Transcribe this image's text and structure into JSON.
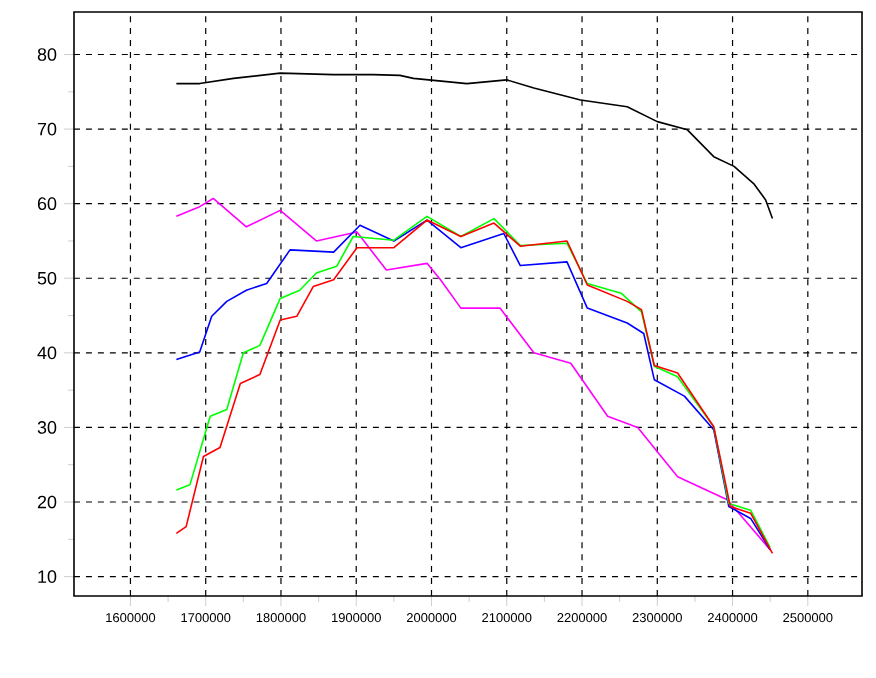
{
  "chart_data": {
    "type": "line",
    "xlim": [
      1525000,
      2572000
    ],
    "ylim": [
      7.4,
      85.7
    ],
    "xticks": [
      1600000,
      1700000,
      1800000,
      1900000,
      2000000,
      2100000,
      2200000,
      2300000,
      2400000,
      2500000
    ],
    "yticks": [
      10,
      20,
      30,
      40,
      50,
      60,
      70,
      80
    ],
    "grid": true,
    "marker": "none",
    "line_style": "solid",
    "series": [
      {
        "color": "#000000",
        "x": [
          1661000,
          1692000,
          1737000,
          1799000,
          1870000,
          1923000,
          1958000,
          1976000,
          2047000,
          2100000,
          2136000,
          2198000,
          2260000,
          2300000,
          2340000,
          2375000,
          2402000,
          2428000,
          2444000,
          2453000
        ],
        "values": [
          76.1,
          76.1,
          76.8,
          77.5,
          77.3,
          77.3,
          77.2,
          76.8,
          76.1,
          76.6,
          75.5,
          73.9,
          73.0,
          71.0,
          69.9,
          66.3,
          65.0,
          62.7,
          60.5,
          58.0
        ]
      },
      {
        "color": "#ff00ff",
        "x": [
          1661000,
          1692000,
          1710000,
          1754000,
          1799000,
          1847000,
          1901000,
          1940000,
          1994000,
          2012000,
          2039000,
          2091000,
          2136000,
          2185000,
          2234000,
          2274000,
          2327000,
          2393000,
          2450000
        ],
        "values": [
          58.3,
          59.6,
          60.7,
          56.9,
          59.1,
          55.0,
          56.2,
          51.1,
          52.0,
          49.8,
          46.0,
          46.0,
          40.0,
          38.6,
          31.5,
          30.0,
          23.4,
          20.3,
          13.6
        ]
      },
      {
        "color": "#0000ff",
        "x": [
          1661000,
          1692000,
          1708000,
          1728000,
          1754000,
          1781000,
          1812000,
          1870000,
          1905000,
          1950000,
          1994000,
          2039000,
          2096000,
          2118000,
          2180000,
          2207000,
          2260000,
          2282000,
          2296000,
          2336000,
          2375000,
          2395000,
          2424000,
          2450000
        ],
        "values": [
          39.1,
          40.1,
          44.9,
          46.9,
          48.4,
          49.3,
          53.8,
          53.5,
          57.1,
          55.0,
          57.8,
          54.1,
          56.0,
          51.7,
          52.2,
          46.0,
          44.0,
          42.6,
          36.4,
          34.2,
          29.7,
          19.4,
          17.8,
          13.6
        ]
      },
      {
        "color": "#00ff00",
        "x": [
          1661000,
          1679000,
          1706000,
          1728000,
          1750000,
          1772000,
          1799000,
          1825000,
          1847000,
          1874000,
          1896000,
          1950000,
          1994000,
          2039000,
          2083000,
          2118000,
          2180000,
          2207000,
          2252000,
          2279000,
          2296000,
          2327000,
          2375000,
          2395000,
          2424000,
          2450000
        ],
        "values": [
          21.6,
          22.3,
          31.5,
          32.4,
          40.0,
          41.0,
          47.3,
          48.4,
          50.7,
          51.6,
          55.6,
          55.1,
          58.3,
          55.6,
          58.0,
          54.4,
          54.7,
          49.3,
          48.0,
          45.5,
          38.2,
          36.8,
          30.1,
          19.8,
          18.9,
          13.9
        ]
      },
      {
        "color": "#ff0000",
        "x": [
          1661000,
          1674000,
          1697000,
          1719000,
          1746000,
          1772000,
          1799000,
          1821000,
          1843000,
          1870000,
          1901000,
          1950000,
          1994000,
          2039000,
          2083000,
          2118000,
          2180000,
          2207000,
          2260000,
          2279000,
          2296000,
          2327000,
          2375000,
          2397000,
          2424000,
          2453000
        ],
        "values": [
          15.8,
          16.7,
          26.1,
          27.3,
          35.9,
          37.1,
          44.4,
          44.9,
          48.9,
          49.8,
          54.1,
          54.1,
          57.8,
          55.6,
          57.4,
          54.3,
          55.0,
          49.1,
          46.9,
          45.8,
          38.3,
          37.3,
          30.1,
          19.4,
          18.5,
          13.1
        ]
      }
    ]
  }
}
